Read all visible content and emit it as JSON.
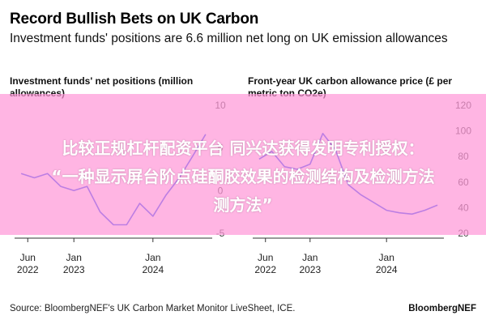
{
  "header": {
    "title": "Record Bullish Bets on UK Carbon",
    "subtitle": "Investment funds' positions are 6.6 million net long on UK emission allowances"
  },
  "watermark": {
    "line1": "比较正规杠杆配资平台 同兴达获得发明专利授权：",
    "line2": "“一种显示屏台阶点硅酮胶效果的检测结构及检测方法",
    "line3": "测方法”"
  },
  "footer": {
    "source": "Source: BloombergNEF's UK Carbon Market Monitor LiveSheet, ICE.",
    "brand": "BloombergNEF"
  },
  "chart_data": [
    {
      "type": "line",
      "title": "Investment funds' net positions (million allowances)",
      "xlabel": "",
      "ylabel": "",
      "x": [
        "2022-05",
        "2022-07",
        "2022-09",
        "2022-11",
        "2023-01",
        "2023-03",
        "2023-05",
        "2023-07",
        "2023-09",
        "2023-11",
        "2024-01",
        "2024-03",
        "2024-05",
        "2024-07",
        "2024-09"
      ],
      "series": [
        {
          "values": [
            2.0,
            1.5,
            2.0,
            0.5,
            0.0,
            0.5,
            -2.5,
            -4.0,
            -4.0,
            -1.5,
            -3.0,
            -0.5,
            1.5,
            4.0,
            6.6
          ]
        }
      ],
      "ylim": [
        -5,
        10
      ],
      "yticks": [
        10,
        5,
        0,
        -5
      ],
      "xticks": [
        {
          "month": "Jun",
          "year": "2022"
        },
        {
          "month": "Jan",
          "year": "2023"
        },
        {
          "month": "Jan",
          "year": "2024"
        }
      ],
      "line_color": "#1f49ff",
      "y_axis_side": "right",
      "grid": false
    },
    {
      "type": "line",
      "title": "Front-year UK carbon allowance price (£ per metric ton CO2e)",
      "xlabel": "",
      "ylabel": "",
      "x": [
        "2022-05",
        "2022-07",
        "2022-09",
        "2022-11",
        "2023-01",
        "2023-03",
        "2023-05",
        "2023-07",
        "2023-09",
        "2023-11",
        "2024-01",
        "2024-03",
        "2024-05",
        "2024-07",
        "2024-09"
      ],
      "series": [
        {
          "values": [
            78,
            84,
            72,
            70,
            74,
            98,
            85,
            58,
            50,
            44,
            38,
            36,
            35,
            38,
            42
          ]
        }
      ],
      "ylim": [
        20,
        120
      ],
      "yticks": [
        120,
        100,
        80,
        60,
        40,
        20
      ],
      "xticks": [
        {
          "month": "Jun",
          "year": "2022"
        },
        {
          "month": "Jan",
          "year": "2023"
        },
        {
          "month": "Jan",
          "year": "2024"
        }
      ],
      "line_color": "#1f49ff",
      "y_axis_side": "right",
      "grid": false
    }
  ]
}
